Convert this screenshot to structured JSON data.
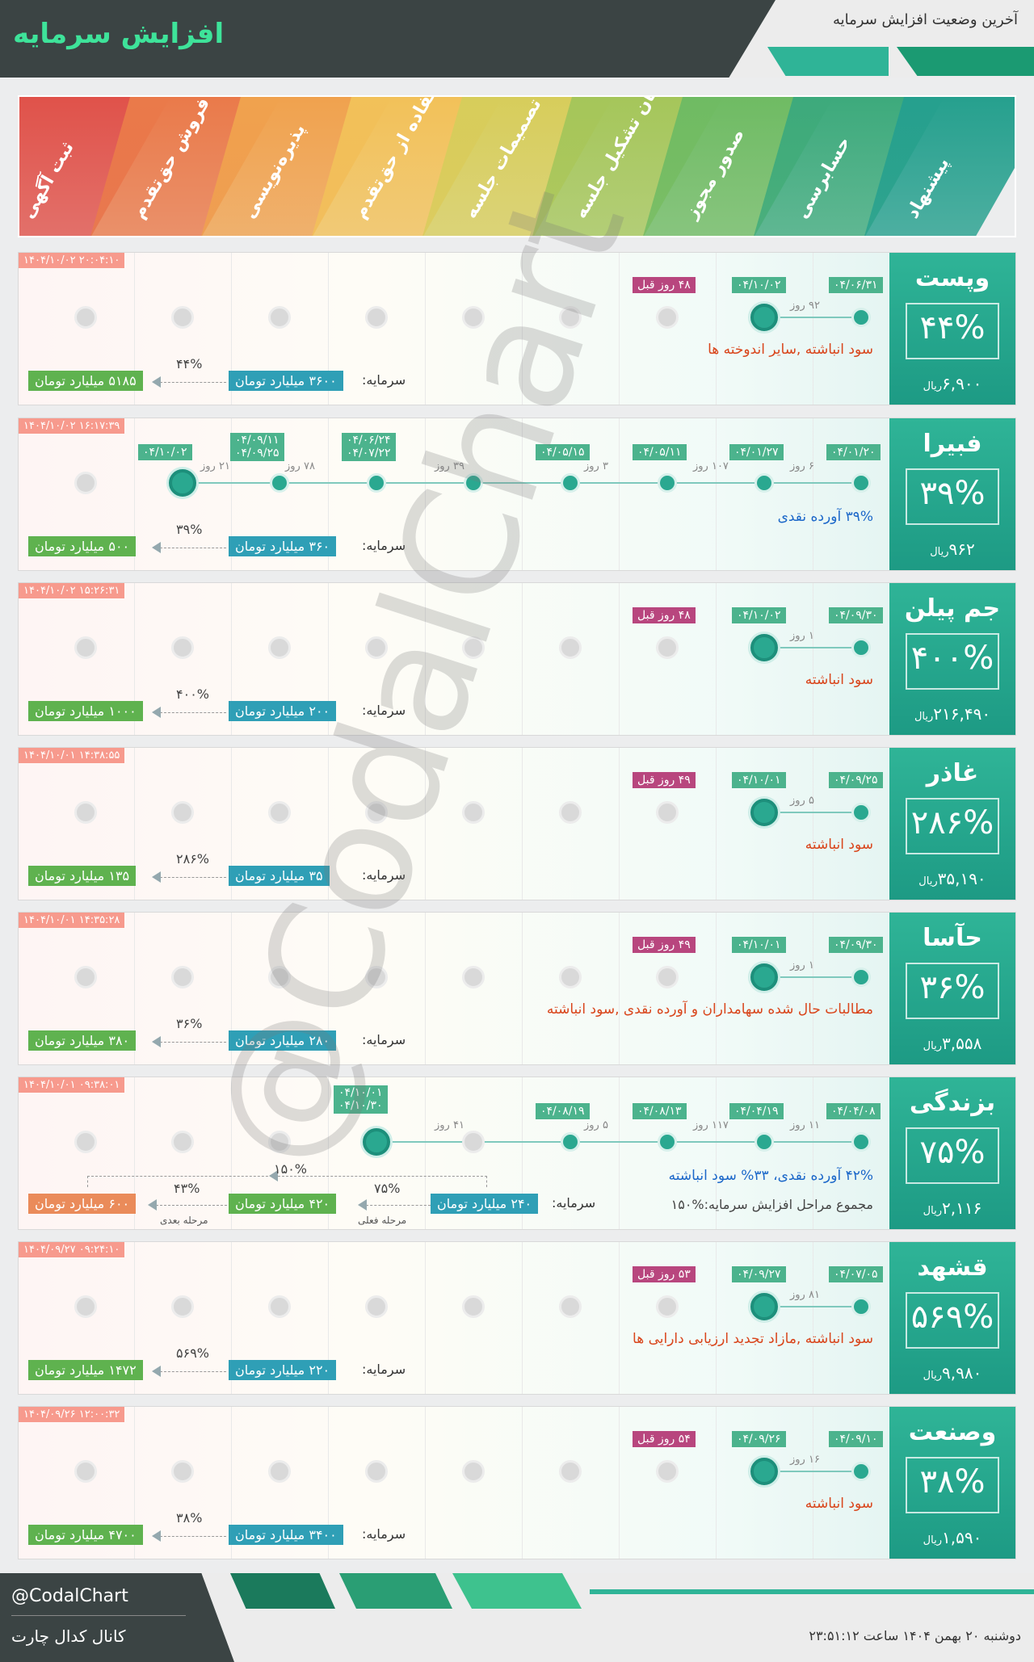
{
  "header": {
    "title": "افزایش سرمایه",
    "subtitle": "آخرین وضعیت افزایش سرمایه"
  },
  "stages": [
    {
      "label": "ثبت آگهی",
      "color": "#e0524a"
    },
    {
      "label": "فروش حق‌تقدم",
      "color": "#ea7a4a"
    },
    {
      "label": "پذیره‌نویسی",
      "color": "#f0a24e"
    },
    {
      "label": "استفاده از حق‌تقدم",
      "color": "#f2c159"
    },
    {
      "label": "تصمیمات جلسه",
      "color": "#d7cd5b"
    },
    {
      "label": "زمان تشکیل جلسه",
      "color": "#a5c65a"
    },
    {
      "label": "صدور مجوز",
      "color": "#6fbb63"
    },
    {
      "label": "حسابرسی",
      "color": "#3daa7c"
    },
    {
      "label": "پیشنهاد",
      "color": "#26a08e"
    }
  ],
  "rows": [
    {
      "name": "وپست",
      "pct": "۴۴%",
      "price": "۶,۹۰۰",
      "unit": "ریال",
      "stamp": "۱۴۰۴/۱۰/۰۲ ۲۰:۰۴:۱۰",
      "dates": [
        "۰۴/۰۶/۳۱",
        "۰۴/۱۰/۰۲"
      ],
      "ago": "۴۸ روز قبل",
      "gaps": [
        "۹۲ روز"
      ],
      "reason": "سود انباشته ,سایر اندوخته ها",
      "cap_label": "سرمایه:",
      "cap": "۳۶۰۰ میلیارد تومان",
      "new_cap": "۵۱۸۵ میلیارد تومان",
      "inc": "۴۴%"
    },
    {
      "name": "فبیرا",
      "pct": "۳۹%",
      "price": "۹۶۲",
      "unit": "ریال",
      "stamp": "۱۴۰۴/۱۰/۰۲ ۱۶:۱۷:۳۹",
      "dates": [
        "۰۴/۰۱/۲۰",
        "۰۴/۰۱/۲۷",
        "۰۴/۰۵/۱۱",
        "۰۴/۰۵/۱۵",
        "۰۴/۰۶/۲۴",
        "۰۴/۰۷/۲۲",
        "۰۴/۰۹/۱۱",
        "۰۴/۰۹/۲۵",
        "۰۴/۱۰/۰۲"
      ],
      "gaps": [
        "۶ روز",
        "۱۰۷ روز",
        "۳ روز",
        "۳۹ روز",
        "۷۸ روز",
        "۲۱ روز"
      ],
      "reason": "۳۹% آورده نقدی",
      "cap_label": "سرمایه:",
      "cap": "۳۶۰ میلیارد تومان",
      "new_cap": "۵۰۰ میلیارد تومان",
      "inc": "۳۹%"
    },
    {
      "name": "جم پیلن",
      "pct": "۴۰۰%",
      "price": "۲۱۶,۴۹۰",
      "unit": "ریال",
      "stamp": "۱۴۰۴/۱۰/۰۲ ۱۵:۲۶:۳۱",
      "dates": [
        "۰۴/۰۹/۳۰",
        "۰۴/۱۰/۰۲"
      ],
      "ago": "۴۸ روز قبل",
      "gaps": [
        "۱ روز"
      ],
      "reason": "سود انباشته",
      "cap_label": "سرمایه:",
      "cap": "۲۰۰ میلیارد تومان",
      "new_cap": "۱۰۰۰ میلیارد تومان",
      "inc": "۴۰۰%"
    },
    {
      "name": "غاذر",
      "pct": "۲۸۶%",
      "price": "۳۵,۱۹۰",
      "unit": "ریال",
      "stamp": "۱۴۰۴/۱۰/۰۱ ۱۴:۳۸:۵۵",
      "dates": [
        "۰۴/۰۹/۲۵",
        "۰۴/۱۰/۰۱"
      ],
      "ago": "۴۹ روز قبل",
      "gaps": [
        "۵ روز"
      ],
      "reason": "سود انباشته",
      "cap_label": "سرمایه:",
      "cap": "۳۵ میلیارد تومان",
      "new_cap": "۱۳۵ میلیارد تومان",
      "inc": "۲۸۶%"
    },
    {
      "name": "حآسا",
      "pct": "۳۶%",
      "price": "۳,۵۵۸",
      "unit": "ریال",
      "stamp": "۱۴۰۴/۱۰/۰۱ ۱۴:۳۵:۲۸",
      "dates": [
        "۰۴/۰۹/۳۰",
        "۰۴/۱۰/۰۱"
      ],
      "ago": "۴۹ روز قبل",
      "gaps": [
        "۱ روز"
      ],
      "reason": "مطالبات حال شده سهامداران و آورده نقدی ,سود انباشته",
      "cap_label": "سرمایه:",
      "cap": "۲۸۰ میلیارد تومان",
      "new_cap": "۳۸۰ میلیارد تومان",
      "inc": "۳۶%"
    },
    {
      "name": "بزندگی",
      "pct": "۷۵%",
      "price": "۲,۱۱۶",
      "unit": "ریال",
      "stamp": "۱۴۰۴/۱۰/۰۱ ۰۹:۳۸:۰۱",
      "dates": [
        "۰۴/۰۴/۰۸",
        "۰۴/۰۴/۱۹",
        "۰۴/۰۸/۱۳",
        "۰۴/۰۸/۱۹",
        "۰۴/۱۰/۰۱",
        "۰۴/۱۰/۳۰"
      ],
      "gaps": [
        "۱۱ روز",
        "۱۱۷ روز",
        "۵ روز",
        "۴۱ روز"
      ],
      "reason": "۴۲% آورده نقدی، ۳۳% سود انباشته",
      "total_note": "مجموع مراحل افزایش سرمایه:%۱۵۰",
      "cap_label": "سرمایه:",
      "cap": "۲۴۰ میلیارد تومان",
      "new_cap": "۴۲۰ میلیارد تومان",
      "next_cap": "۶۰۰ میلیارد تومان",
      "inc": "۷۵%",
      "inc_next": "۴۳%",
      "inc_total": "۱۵۰%",
      "current_stage": "مرحله فعلی",
      "next_stage": "مرحله بعدی"
    },
    {
      "name": "قشهد",
      "pct": "۵۶۹%",
      "price": "۹,۹۸۰",
      "unit": "ریال",
      "stamp": "۱۴۰۴/۰۹/۲۷ ۰۹:۲۴:۱۰",
      "dates": [
        "۰۴/۰۷/۰۵",
        "۰۴/۰۹/۲۷"
      ],
      "ago": "۵۳ روز قبل",
      "gaps": [
        "۸۱ روز"
      ],
      "reason": "سود انباشته ,مازاد تجدید ارزیابی دارایی ها",
      "cap_label": "سرمایه:",
      "cap": "۲۲۰ میلیارد تومان",
      "new_cap": "۱۴۷۲ میلیارد تومان",
      "inc": "۵۶۹%"
    },
    {
      "name": "وصنعت",
      "pct": "۳۸%",
      "price": "۱,۵۹۰",
      "unit": "ریال",
      "stamp": "۱۴۰۴/۰۹/۲۶ ۱۲:۰۰:۳۲",
      "dates": [
        "۰۴/۰۹/۱۰",
        "۰۴/۰۹/۲۶"
      ],
      "ago": "۵۴ روز قبل",
      "gaps": [
        "۱۶ روز"
      ],
      "reason": "سود انباشته",
      "cap_label": "سرمایه:",
      "cap": "۳۴۰۰ میلیارد تومان",
      "new_cap": "۴۷۰۰ میلیارد تومان",
      "inc": "۳۸%"
    }
  ],
  "watermark": "@CodalChart",
  "footer": {
    "handle": "@CodalChart",
    "channel": "کانال کدال چارت",
    "date": "دوشنبه ۲۰ بهمن ۱۴۰۴ ساعت ۲۳:۵۱:۱۲"
  }
}
